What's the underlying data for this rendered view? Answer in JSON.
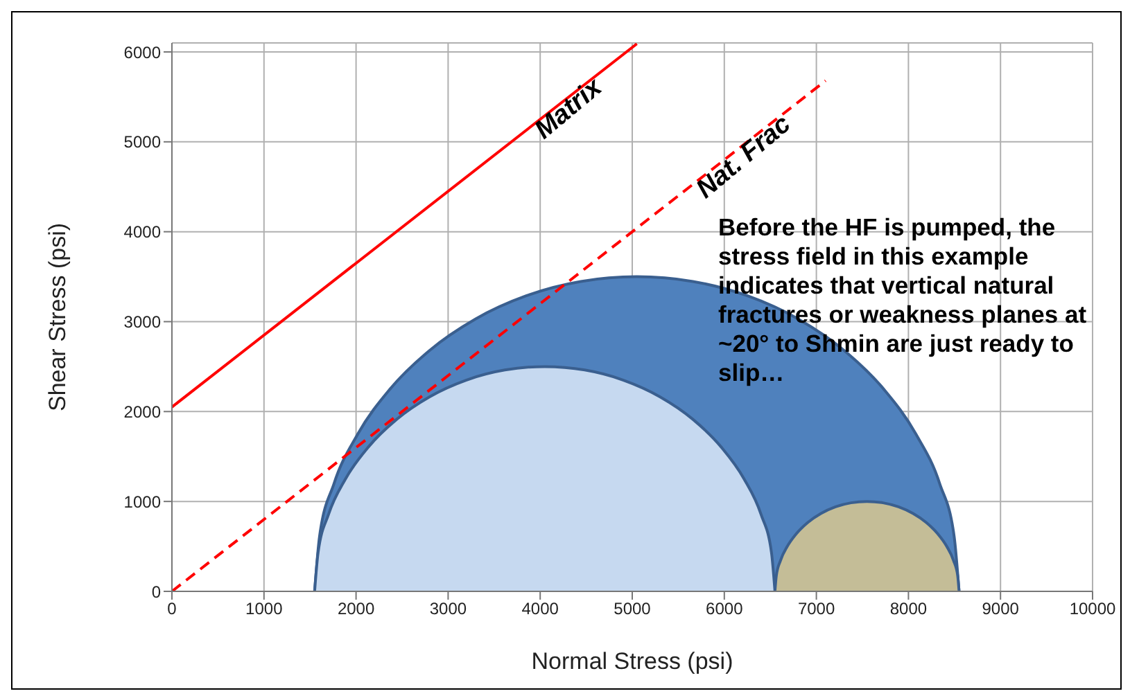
{
  "chart_data": {
    "type": "area",
    "xlabel": "Normal  Stress (psi)",
    "ylabel": "Shear Stress (psi)",
    "xlim": [
      0,
      10000
    ],
    "ylim": [
      0,
      6100
    ],
    "xticks": [
      0,
      1000,
      2000,
      3000,
      4000,
      5000,
      6000,
      7000,
      8000,
      9000,
      10000
    ],
    "yticks": [
      0,
      1000,
      2000,
      3000,
      4000,
      5000,
      6000
    ],
    "grid": true,
    "marker": "none",
    "series": [
      {
        "color": "#4f81bd",
        "x": [
          1550,
          1603,
          1760,
          2019,
          2369,
          2800,
          3300,
          3853,
          4442,
          5050,
          5658,
          6247,
          6800,
          7300,
          7731,
          8081,
          8340,
          8497,
          8550
        ],
        "values": [
          0,
          609,
          1197,
          1750,
          2250,
          2681,
          3031,
          3289,
          3447,
          3500,
          3447,
          3289,
          3031,
          2681,
          2250,
          1750,
          1197,
          609,
          0
        ]
      },
      {
        "color": "#c6d9f0",
        "x": [
          1550,
          1588,
          1701,
          1885,
          2135,
          2443,
          2800,
          3195,
          3616,
          4050,
          4484,
          4905,
          5300,
          5657,
          5965,
          6215,
          6399,
          6512,
          6550
        ],
        "values": [
          0,
          434,
          855,
          1250,
          1607,
          1915,
          2165,
          2349,
          2462,
          2500,
          2462,
          2349,
          2165,
          1915,
          1607,
          1250,
          855,
          434,
          0
        ]
      },
      {
        "color": "#c4bd97",
        "x": [
          6550,
          6565,
          6610,
          6684,
          6784,
          6907,
          7050,
          7208,
          7376,
          7550,
          7724,
          7892,
          8050,
          8193,
          8316,
          8416,
          8490,
          8535,
          8550
        ],
        "values": [
          0,
          174,
          342,
          500,
          643,
          766,
          866,
          940,
          985,
          1000,
          985,
          940,
          866,
          766,
          643,
          500,
          342,
          174,
          0
        ]
      },
      {
        "type": "line",
        "name": "Matrix",
        "color": "#ff0000",
        "line_style": "solid",
        "x": [
          0,
          5050
        ],
        "values": [
          2050,
          6090
        ]
      },
      {
        "type": "line",
        "name": "Nat. Frac",
        "color": "#ff0000",
        "line_style": "dashed",
        "x": [
          0,
          7100
        ],
        "values": [
          0,
          5680
        ]
      }
    ],
    "annotations": [
      "Before the HF is pumped, the stress field in this example indicates that vertical natural fractures or weakness planes at ~20° to Shmin are just ready to slip…"
    ]
  }
}
